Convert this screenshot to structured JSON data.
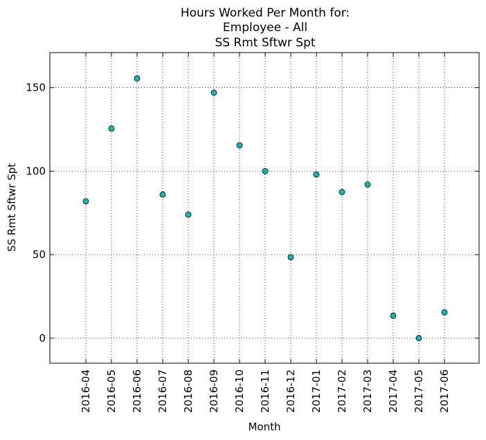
{
  "chart_data": {
    "type": "scatter",
    "title_lines": [
      "Hours Worked Per Month for:",
      "Employee - All",
      "SS Rmt Sftwr Spt"
    ],
    "xlabel": "Month",
    "ylabel": "SS Rmt Sftwr Spt",
    "x": [
      "2016-04",
      "2016-05",
      "2016-06",
      "2016-07",
      "2016-08",
      "2016-09",
      "2016-10",
      "2016-11",
      "2016-12",
      "2017-01",
      "2017-02",
      "2017-03",
      "2017-04",
      "2017-05",
      "2017-06"
    ],
    "values": [
      82,
      125.5,
      155.5,
      86,
      74,
      147,
      115.5,
      100,
      48.5,
      98,
      87.5,
      92,
      13.5,
      0,
      15.5
    ],
    "yticks": [
      0,
      50,
      100,
      150
    ],
    "ylim": [
      -15,
      171
    ],
    "grid": true,
    "legend": "none",
    "marker_color": "#17b5b5"
  }
}
